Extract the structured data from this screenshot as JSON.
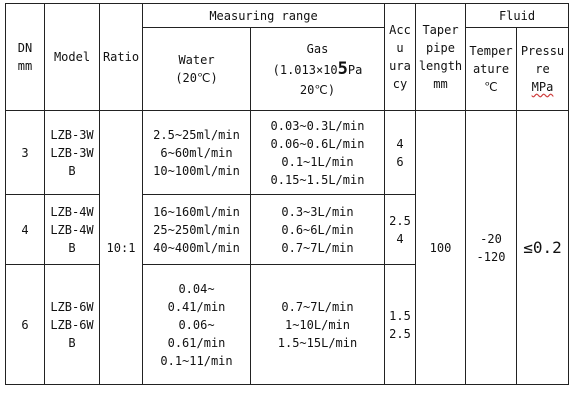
{
  "headers": {
    "dn": [
      "DN",
      "mm"
    ],
    "model": "Model",
    "ratio": "Ratio",
    "measuring_range": "Measuring range",
    "water": [
      "Water",
      "(20℃)"
    ],
    "gas_title": "Gas",
    "gas_pressure_pre": "(1.013×10",
    "gas_pressure_exp": "5",
    "gas_pressure_post": "Pa",
    "gas_temp": "20℃)",
    "accuracy": [
      "Accu",
      "ura",
      "cy"
    ],
    "taper": [
      "Taper",
      "pipe",
      "length",
      "mm"
    ],
    "fluid": "Fluid",
    "temperature": [
      "Temper",
      "ature",
      "℃"
    ],
    "pressure": [
      "Pressu",
      "re",
      "MPa"
    ]
  },
  "rows": [
    {
      "dn": "3",
      "model": [
        "LZB-3W",
        "LZB-3W",
        "B"
      ],
      "water": [
        "2.5~25ml/min",
        "6~60ml/min",
        "10~100ml/min"
      ],
      "gas": [
        "0.03~0.3L/min",
        "0.06~0.6L/min",
        "0.1~1L/min",
        "0.15~1.5L/min"
      ],
      "accuracy": [
        "4",
        "6"
      ]
    },
    {
      "dn": "4",
      "model": [
        "LZB-4W",
        "LZB-4W",
        "B"
      ],
      "water": [
        "16~160ml/min",
        "25~250ml/min",
        "40~400ml/min"
      ],
      "gas": [
        "0.3~3L/min",
        "0.6~6L/min",
        "0.7~7L/min"
      ],
      "accuracy": [
        "2.5",
        "4"
      ]
    },
    {
      "dn": "6",
      "model": [
        "LZB-6W",
        "LZB-6W",
        "B"
      ],
      "water": [
        "0.04~",
        "0.41/min",
        "0.06~",
        "0.61/min",
        "0.1~11/min"
      ],
      "gas": [
        "0.7~7L/min",
        "1~10L/min",
        "1.5~15L/min"
      ],
      "accuracy": [
        "1.5",
        "2.5"
      ]
    }
  ],
  "shared": {
    "ratio": "10:1",
    "taper_length": "100",
    "temperature": [
      "-20",
      "-120"
    ],
    "pressure": "≤0.2"
  }
}
